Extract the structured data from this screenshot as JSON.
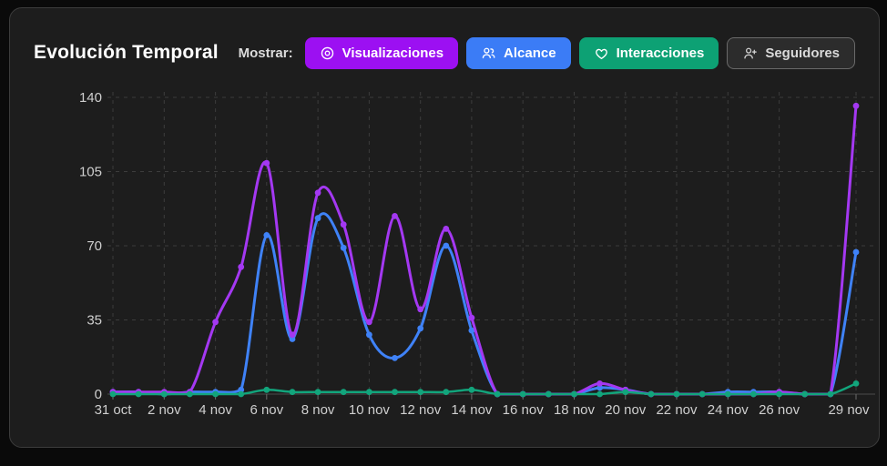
{
  "card": {
    "title": "Evolución Temporal",
    "mostrar_label": "Mostrar:"
  },
  "toggles": [
    {
      "label": "Visualizaciones",
      "icon": "eye-icon",
      "color": "#9c10f2",
      "active": true
    },
    {
      "label": "Alcance",
      "icon": "users-icon",
      "color": "#3b7cf6",
      "active": true
    },
    {
      "label": "Interacciones",
      "icon": "heart-icon",
      "color": "#0da174",
      "active": true
    },
    {
      "label": "Seguidores",
      "icon": "user-plus-icon",
      "color": "#2c2c2c",
      "active": false
    }
  ],
  "chart_data": {
    "type": "line",
    "x": [
      "31 oct",
      "1 nov",
      "2 nov",
      "3 nov",
      "4 nov",
      "5 nov",
      "6 nov",
      "7 nov",
      "8 nov",
      "9 nov",
      "10 nov",
      "11 nov",
      "12 nov",
      "13 nov",
      "14 nov",
      "15 nov",
      "16 nov",
      "17 nov",
      "18 nov",
      "19 nov",
      "20 nov",
      "21 nov",
      "22 nov",
      "23 nov",
      "24 nov",
      "25 nov",
      "26 nov",
      "27 nov",
      "28 nov",
      "29 nov"
    ],
    "tick_days": [
      0,
      2,
      4,
      6,
      8,
      10,
      12,
      14,
      16,
      18,
      20,
      22,
      24,
      26,
      29
    ],
    "tick_labels": [
      "31 oct",
      "2 nov",
      "4 nov",
      "6 nov",
      "8 nov",
      "10 nov",
      "12 nov",
      "14 nov",
      "16 nov",
      "18 nov",
      "20 nov",
      "22 nov",
      "24 nov",
      "26 nov",
      "29 nov"
    ],
    "yticks": [
      0,
      35,
      70,
      105,
      140
    ],
    "ylim": [
      0,
      140
    ],
    "grid": "dashed",
    "legend_position": "none",
    "series": [
      {
        "name": "Visualizaciones",
        "color": "#a438f2",
        "width": 3,
        "values": [
          1,
          1,
          1,
          1,
          34,
          60,
          109,
          28,
          95,
          80,
          34,
          84,
          40,
          78,
          36,
          0,
          0,
          0,
          0,
          5,
          2,
          0,
          0,
          0,
          0,
          0,
          1,
          0,
          0,
          136
        ]
      },
      {
        "name": "Alcance",
        "color": "#3f82f7",
        "width": 3,
        "values": [
          1,
          1,
          0,
          1,
          1,
          2,
          75,
          26,
          83,
          69,
          28,
          17,
          31,
          70,
          30,
          0,
          0,
          0,
          0,
          3,
          2,
          0,
          0,
          0,
          1,
          1,
          1,
          0,
          0,
          67
        ]
      },
      {
        "name": "Interacciones",
        "color": "#12a57c",
        "width": 2.5,
        "values": [
          0,
          0,
          0,
          0,
          0,
          0,
          2,
          1,
          1,
          1,
          1,
          1,
          1,
          1,
          2,
          0,
          0,
          0,
          0,
          0,
          1,
          0,
          0,
          0,
          0,
          0,
          0,
          0,
          0,
          5
        ]
      }
    ],
    "colors": {
      "grid": "rgba(255,255,255,0.14)",
      "zero_line": "#4a4a4a",
      "tick_text": "#cfcfcf",
      "card_bg": "#1d1d1d",
      "page_bg": "#0a0a0a"
    }
  }
}
